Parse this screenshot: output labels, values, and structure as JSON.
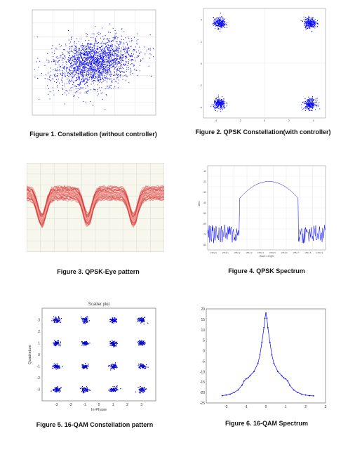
{
  "captions": [
    "Figure 1. Constellation (without controller)",
    "Figure 2. QPSK Constellation(with controller)",
    "Figure 3. QPSK-Eye pattern",
    "Figure 4. QPSK Spectrum",
    "Figure 5. 16-QAM Constellation pattern",
    "Figure 6. 16-QAM Spectrum"
  ],
  "chart_data": [
    {
      "type": "scatter",
      "title": "",
      "color": "#0000ff",
      "description_points": "dense elliptical cloud of received symbols",
      "xlim": [
        -3,
        3
      ],
      "ylim": [
        -3.2,
        3.2
      ],
      "cloud_center": [
        0,
        0
      ],
      "cloud_spread": [
        1.0,
        0.7
      ],
      "cloud_tilt_deg": 22
    },
    {
      "type": "scatter",
      "title": "",
      "color": "#0000ff",
      "xlim": [
        -5,
        5
      ],
      "ylim": [
        -5,
        5
      ],
      "xticks": [
        "-4",
        "-2",
        "0",
        "2",
        "4"
      ],
      "yticks": [
        "4",
        "2",
        "0",
        "-2",
        "-4"
      ],
      "clusters": [
        [
          -3.7,
          3.7
        ],
        [
          3.7,
          3.7
        ],
        [
          -3.7,
          -3.7
        ],
        [
          3.7,
          -3.7
        ]
      ]
    },
    {
      "type": "line",
      "title": "",
      "color": "#d32a2a",
      "description_points": "QPSK eye diagram: overlaid symbol traces forming periodic eyes",
      "periods": 3
    },
    {
      "type": "line",
      "title": "",
      "xlabel": "Wave Length",
      "ylabel": "dBm",
      "color": "#0000ff",
      "xticks": [
        "1552.0",
        "1552.1",
        "1552.2",
        "1552.3",
        "1552.4",
        "1552.5",
        "1552.6",
        "1552.7",
        "1552.8",
        "1552.9"
      ],
      "yticks": [
        "-10",
        "-20",
        "-30",
        "-40",
        "-50",
        "-60",
        "-70",
        "-80"
      ],
      "ylim": [
        -85,
        -5
      ],
      "peak": [
        1552.45,
        -20
      ],
      "noise_floor": -75
    },
    {
      "type": "scatter",
      "title": "Scatter plot",
      "xlabel": "In-Phase",
      "ylabel": "Quadrature",
      "color": "#0000cc",
      "xlim": [
        -4,
        4
      ],
      "ylim": [
        -4,
        4
      ],
      "xticks": [
        "-3",
        "-2",
        "-1",
        "0",
        "1",
        "2",
        "3"
      ],
      "yticks": [
        "3",
        "2",
        "1",
        "0",
        "-1",
        "-2",
        "-3"
      ],
      "constellation": [
        -3,
        -1,
        1,
        3
      ]
    },
    {
      "type": "line",
      "title": "",
      "color": "#0000ff",
      "xlim": [
        -3,
        3
      ],
      "ylim": [
        -25,
        20
      ],
      "xticks": [
        "-2",
        "-1",
        "0",
        "1",
        "2",
        "3"
      ],
      "yticks": [
        "20",
        "15",
        "10",
        "5",
        "0",
        "-5",
        "-10",
        "-15",
        "-20",
        "-25"
      ],
      "x": [
        -2.2,
        -2.0,
        -1.8,
        -1.6,
        -1.4,
        -1.2,
        -1.1,
        -1.0,
        -0.9,
        -0.8,
        -0.6,
        -0.4,
        -0.3,
        -0.2,
        -0.1,
        -0.05,
        0,
        0.05,
        0.1,
        0.2,
        0.3,
        0.4,
        0.6,
        0.8,
        0.9,
        1.0,
        1.1,
        1.2,
        1.4,
        1.6,
        1.8,
        2.0,
        2.2,
        2.4
      ],
      "y": [
        -21.5,
        -21.2,
        -20.8,
        -20.0,
        -18.8,
        -16.5,
        -14.5,
        -13.5,
        -13.0,
        -12.0,
        -10.0,
        -6.0,
        -2.0,
        4.0,
        11.0,
        15.5,
        18.0,
        15.5,
        11.0,
        4.0,
        -2.0,
        -6.0,
        -10.0,
        -12.0,
        -13.0,
        -13.5,
        -14.5,
        -16.5,
        -18.8,
        -20.0,
        -20.8,
        -21.2,
        -21.5,
        -21.6
      ]
    }
  ]
}
